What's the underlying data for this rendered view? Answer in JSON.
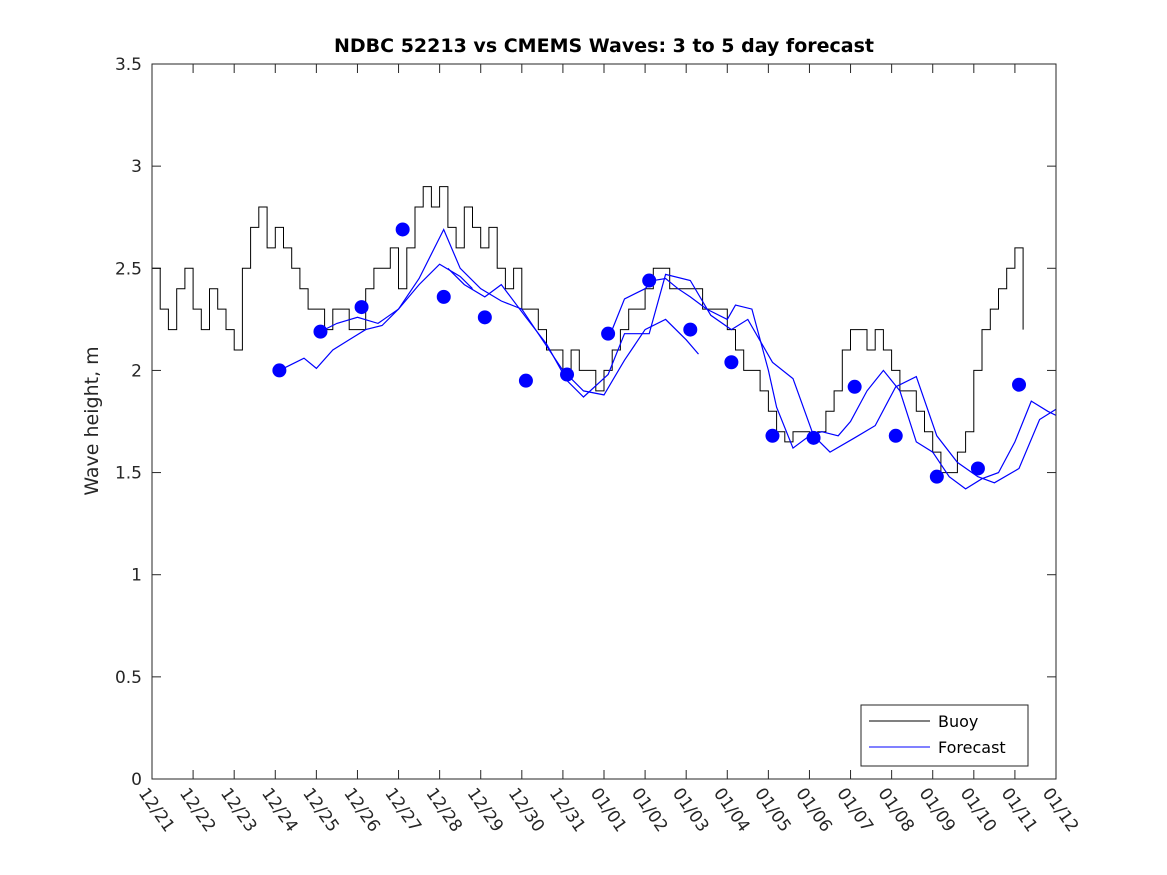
{
  "chart_data": {
    "type": "line",
    "title": "NDBC 52213 vs CMEMS Waves: 3 to 5 day forecast",
    "xlabel": "",
    "ylabel": "Wave height, m",
    "xlim": [
      0,
      22
    ],
    "ylim": [
      0,
      3.5
    ],
    "x_tick_labels": [
      "12/21",
      "12/22",
      "12/23",
      "12/24",
      "12/25",
      "12/26",
      "12/27",
      "12/28",
      "12/29",
      "12/30",
      "12/31",
      "01/01",
      "01/02",
      "01/03",
      "01/04",
      "01/05",
      "01/06",
      "01/07",
      "01/08",
      "01/09",
      "01/10",
      "01/11",
      "01/12"
    ],
    "y_ticks": [
      0,
      0.5,
      1,
      1.5,
      2,
      2.5,
      3,
      3.5
    ],
    "y_tick_labels": [
      "0",
      "0.5",
      "1",
      "1.5",
      "2",
      "2.5",
      "3",
      "3.5"
    ],
    "legend": {
      "position": "bottom-right",
      "entries": [
        "Buoy",
        "Forecast"
      ]
    },
    "colors": {
      "buoy": "#000000",
      "forecast": "#0000ff",
      "marker": "#0000ff"
    },
    "series": [
      {
        "name": "Buoy",
        "x": [
          0,
          0.2,
          0.4,
          0.6,
          0.8,
          1.0,
          1.2,
          1.4,
          1.6,
          1.8,
          2.0,
          2.2,
          2.4,
          2.6,
          2.8,
          3.0,
          3.2,
          3.4,
          3.6,
          3.8,
          4.0,
          4.2,
          4.4,
          4.6,
          4.8,
          5.0,
          5.2,
          5.4,
          5.6,
          5.8,
          6.0,
          6.2,
          6.4,
          6.6,
          6.8,
          7.0,
          7.2,
          7.4,
          7.6,
          7.8,
          8.0,
          8.2,
          8.4,
          8.6,
          8.8,
          9.0,
          9.2,
          9.4,
          9.6,
          9.8,
          10.0,
          10.2,
          10.4,
          10.6,
          10.8,
          11.0,
          11.2,
          11.4,
          11.6,
          11.8,
          12.0,
          12.2,
          12.4,
          12.6,
          12.8,
          13.0,
          13.2,
          13.4,
          13.6,
          13.8,
          14.0,
          14.2,
          14.4,
          14.6,
          14.8,
          15.0,
          15.2,
          15.4,
          15.6,
          15.8,
          16.0,
          16.2,
          16.4,
          16.6,
          16.8,
          17.0,
          17.2,
          17.4,
          17.6,
          17.8,
          18.0,
          18.2,
          18.4,
          18.6,
          18.8,
          19.0,
          19.2,
          19.4,
          19.6,
          19.8,
          20.0,
          20.2,
          20.4,
          20.6,
          20.8,
          21.0,
          21.2
        ],
        "values": [
          2.5,
          2.3,
          2.2,
          2.4,
          2.5,
          2.3,
          2.2,
          2.4,
          2.3,
          2.2,
          2.1,
          2.5,
          2.7,
          2.8,
          2.6,
          2.7,
          2.6,
          2.5,
          2.4,
          2.3,
          2.3,
          2.2,
          2.3,
          2.3,
          2.2,
          2.2,
          2.4,
          2.5,
          2.5,
          2.6,
          2.4,
          2.6,
          2.8,
          2.9,
          2.8,
          2.9,
          2.7,
          2.6,
          2.8,
          2.7,
          2.6,
          2.7,
          2.5,
          2.4,
          2.5,
          2.3,
          2.3,
          2.2,
          2.1,
          2.1,
          2.0,
          2.1,
          2.0,
          2.0,
          1.9,
          2.0,
          2.1,
          2.2,
          2.3,
          2.3,
          2.4,
          2.5,
          2.5,
          2.4,
          2.4,
          2.4,
          2.4,
          2.3,
          2.3,
          2.3,
          2.2,
          2.1,
          2.0,
          2.0,
          1.9,
          1.8,
          1.7,
          1.65,
          1.7,
          1.7,
          1.65,
          1.7,
          1.8,
          1.9,
          2.1,
          2.2,
          2.2,
          2.1,
          2.2,
          2.1,
          2.0,
          1.9,
          1.9,
          1.8,
          1.7,
          1.6,
          1.5,
          1.5,
          1.6,
          1.7,
          2.0,
          2.2,
          2.3,
          2.4,
          2.5,
          2.6,
          2.2
        ]
      },
      {
        "name": "Forecast",
        "segments": [
          {
            "x": [
              3.1,
              3.4,
              3.7,
              4.0,
              4.4,
              4.8,
              5.2,
              5.6,
              6.0,
              6.5,
              7.0,
              7.5,
              7.8
            ],
            "values": [
              2.0,
              2.03,
              2.06,
              2.01,
              2.1,
              2.15,
              2.2,
              2.22,
              2.3,
              2.42,
              2.52,
              2.46,
              2.4
            ]
          },
          {
            "x": [
              4.1,
              4.5,
              5.0,
              5.5,
              6.0,
              6.5,
              7.1,
              7.5,
              8.0,
              8.5,
              9.0,
              9.5,
              10.0,
              10.5,
              11.0,
              11.5,
              12.0,
              12.5,
              13.0,
              13.3
            ],
            "values": [
              2.19,
              2.23,
              2.26,
              2.23,
              2.3,
              2.45,
              2.69,
              2.5,
              2.4,
              2.34,
              2.3,
              2.15,
              2.0,
              1.9,
              1.88,
              2.05,
              2.2,
              2.25,
              2.15,
              2.08
            ]
          },
          {
            "x": [
              7.2,
              7.6,
              8.1,
              8.5,
              9.1,
              9.6,
              10.1,
              10.5,
              11.1,
              11.5,
              12.1,
              12.5,
              13.1,
              13.6,
              14.1,
              14.5,
              15.1,
              15.6,
              16.1,
              16.5,
              17.1,
              17.6,
              18.1,
              18.6,
              19.1,
              19.6,
              20.1,
              20.5,
              21.1,
              21.6,
              22.0
            ],
            "values": [
              2.5,
              2.42,
              2.36,
              2.42,
              2.26,
              2.13,
              1.95,
              1.87,
              1.98,
              2.18,
              2.18,
              2.47,
              2.44,
              2.27,
              2.2,
              2.25,
              2.04,
              1.96,
              1.68,
              1.6,
              1.67,
              1.73,
              1.92,
              1.97,
              1.68,
              1.55,
              1.48,
              1.45,
              1.52,
              1.76,
              1.81
            ]
          },
          {
            "x": [
              11.2,
              11.5,
              12.0,
              12.2,
              12.5,
              12.8,
              13.1,
              13.5,
              14.0,
              14.2,
              14.6,
              15.0,
              15.2,
              15.6,
              16.0,
              16.3,
              16.7,
              17.0,
              17.4,
              17.8,
              18.2,
              18.6,
              19.0,
              19.4,
              19.8,
              20.2,
              20.6,
              21.0,
              21.4,
              21.8,
              22.0
            ],
            "values": [
              2.2,
              2.35,
              2.4,
              2.44,
              2.45,
              2.4,
              2.36,
              2.3,
              2.25,
              2.32,
              2.3,
              2.0,
              1.82,
              1.62,
              1.68,
              1.7,
              1.68,
              1.75,
              1.9,
              2.0,
              1.9,
              1.65,
              1.6,
              1.48,
              1.42,
              1.47,
              1.5,
              1.65,
              1.85,
              1.8,
              1.78
            ]
          }
        ]
      },
      {
        "name": "Forecast markers",
        "x": [
          3.1,
          4.1,
          5.1,
          6.1,
          7.1,
          8.1,
          9.1,
          10.1,
          11.1,
          12.1,
          13.1,
          14.1,
          15.1,
          16.1,
          17.1,
          18.1,
          19.1,
          20.1,
          21.1
        ],
        "values": [
          2.0,
          2.19,
          2.31,
          2.69,
          2.36,
          2.26,
          1.95,
          1.98,
          2.18,
          2.44,
          2.2,
          2.04,
          1.68,
          1.67,
          1.92,
          1.68,
          1.48,
          1.52,
          1.93
        ]
      }
    ]
  }
}
